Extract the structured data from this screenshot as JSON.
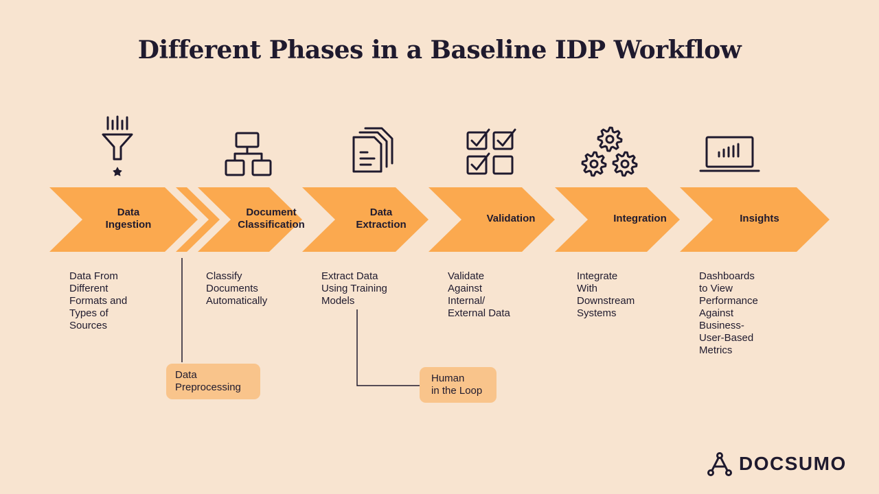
{
  "title": "Different Phases in a Baseline IDP Workflow",
  "colors": {
    "background": "#F8E4D0",
    "chevron": "#FBA94F",
    "callout": "#F9C48B",
    "ink": "#1F1A2E"
  },
  "phases": [
    {
      "label": "Data\nIngestion",
      "description": "Data From\nDifferent\nFormats and\nTypes of\nSources",
      "icon": "funnel-icon"
    },
    {
      "label": "Document\nClassification",
      "description": "Classify\nDocuments\nAutomatically",
      "icon": "hierarchy-icon"
    },
    {
      "label": "Data\nExtraction",
      "description": "Extract Data\nUsing Training\nModels",
      "icon": "document-stack-icon"
    },
    {
      "label": "Validation",
      "description": "Validate\nAgainst\nInternal/\nExternal Data",
      "icon": "checklist-icon"
    },
    {
      "label": "Integration",
      "description": "Integrate\nWith\nDownstream\nSystems",
      "icon": "gears-icon"
    },
    {
      "label": "Insights",
      "description": "Dashboards\nto View\nPerformance\nAgainst\nBusiness-\nUser-Based\nMetrics",
      "icon": "laptop-chart-icon"
    }
  ],
  "callouts": {
    "preprocessing": "Data\nPreprocessing",
    "human_loop": "Human\nin the Loop"
  },
  "brand": {
    "name": "DOCSUMO",
    "icon": "docsumo-logo-icon"
  }
}
